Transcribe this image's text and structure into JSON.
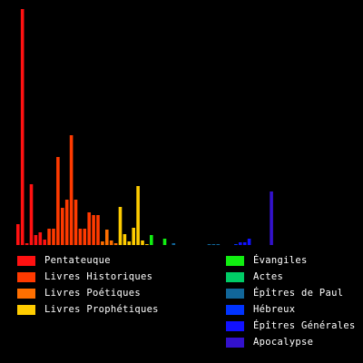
{
  "chart_data": {
    "type": "bar",
    "ylim": [
      0,
      260
    ],
    "grid": false,
    "legend_placement": "bottom",
    "series": [
      {
        "name": "Pentateuque",
        "color": "#ff1111",
        "values": [
          23,
          260,
          2,
          67,
          11,
          14,
          6
        ]
      },
      {
        "name": "Livres Historiques",
        "color": "#ff3a00",
        "values": [
          18,
          18,
          97,
          41,
          50,
          121,
          50,
          18,
          18,
          36,
          33,
          33
        ]
      },
      {
        "name": "Livres Poétiques",
        "color": "#ff6f00",
        "values": [
          4,
          17,
          5,
          2
        ]
      },
      {
        "name": "Livres Prophétiques",
        "color": "#ffcc00",
        "values": [
          42,
          12,
          4,
          19,
          65,
          5,
          1
        ]
      },
      {
        "name": "Évangiles",
        "color": "#11ee11",
        "values": [
          11,
          0,
          0,
          7
        ]
      },
      {
        "name": "Actes",
        "color": "#00cc66",
        "values": [
          0
        ]
      },
      {
        "name": "Épîtres de Paul",
        "color": "#116699",
        "values": [
          2,
          0,
          0,
          0,
          0,
          0,
          0,
          0,
          1,
          1,
          1,
          0,
          0,
          0
        ]
      },
      {
        "name": "Hébreux",
        "color": "#0033ff",
        "values": [
          1
        ]
      },
      {
        "name": "Épîtres Générales",
        "color": "#1111ff",
        "values": [
          3,
          3,
          7,
          0,
          0,
          0,
          0
        ]
      },
      {
        "name": "Apocalypse",
        "color": "#3311cc",
        "values": [
          59
        ]
      }
    ]
  }
}
